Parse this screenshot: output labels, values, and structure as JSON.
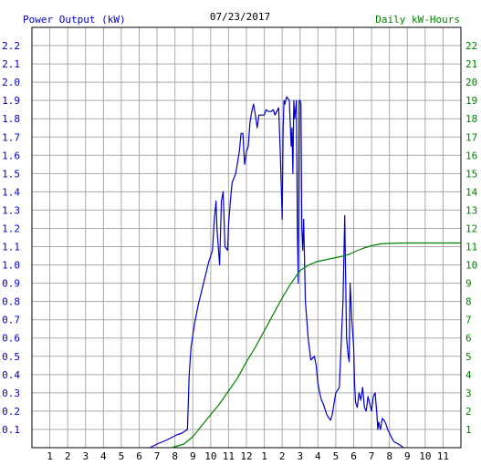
{
  "chart_data": {
    "type": "line",
    "title": "07/23/2017",
    "left_axis_label": "Power Output (kW)",
    "right_axis_label": "Daily kW-Hours",
    "x_ticks": [
      "1",
      "2",
      "3",
      "4",
      "5",
      "6",
      "7",
      "8",
      "9",
      "10",
      "11",
      "12",
      "1",
      "2",
      "3",
      "4",
      "5",
      "6",
      "7",
      "8",
      "9",
      "10",
      "11"
    ],
    "left_ticks": [
      "0.1",
      "0.2",
      "0.3",
      "0.4",
      "0.5",
      "0.6",
      "0.7",
      "0.8",
      "0.9",
      "1.0",
      "1.1",
      "1.2",
      "1.3",
      "1.4",
      "1.5",
      "1.6",
      "1.7",
      "1.8",
      "1.9",
      "2.0",
      "2.1",
      "2.2"
    ],
    "right_ticks": [
      "1",
      "2",
      "3",
      "4",
      "5",
      "6",
      "7",
      "8",
      "9",
      "10",
      "11",
      "12",
      "13",
      "14",
      "15",
      "16",
      "17",
      "18",
      "19",
      "20",
      "21",
      "22"
    ],
    "x_range": [
      0,
      24
    ],
    "left_ylim": [
      0,
      2.3
    ],
    "right_ylim": [
      0,
      23
    ],
    "grid": true,
    "colors": {
      "power": "#0000cc",
      "energy": "#008000",
      "left_axis": "#0000cc",
      "right_axis": "#008000",
      "grid": "#aaaaaa",
      "frame": "#000000"
    },
    "series": [
      {
        "name": "Power Output (kW)",
        "axis": "left",
        "x": [
          6.6,
          7.0,
          7.5,
          7.9,
          8.1,
          8.4,
          8.7,
          8.8,
          8.9,
          9.1,
          9.3,
          9.6,
          9.9,
          10.1,
          10.2,
          10.3,
          10.35,
          10.5,
          10.6,
          10.7,
          10.8,
          10.95,
          11.0,
          11.1,
          11.2,
          11.4,
          11.6,
          11.7,
          11.8,
          11.9,
          12.0,
          12.1,
          12.2,
          12.3,
          12.4,
          12.5,
          12.6,
          12.7,
          12.8,
          12.9,
          13.0,
          13.1,
          13.2,
          13.4,
          13.5,
          13.6,
          13.8,
          13.9,
          14.0,
          14.05,
          14.1,
          14.15,
          14.25,
          14.4,
          14.5,
          14.55,
          14.6,
          14.65,
          14.7,
          14.8,
          14.85,
          14.9,
          14.95,
          15.0,
          15.05,
          15.1,
          15.15,
          15.2,
          15.3,
          15.45,
          15.6,
          15.8,
          15.9,
          16.0,
          16.1,
          16.2,
          16.3,
          16.5,
          16.7,
          16.8,
          17.0,
          17.2,
          17.4,
          17.5,
          17.6,
          17.7,
          17.75,
          17.8,
          17.9,
          18.0,
          18.05,
          18.1,
          18.2,
          18.3,
          18.4,
          18.5,
          18.6,
          18.7,
          18.8,
          18.9,
          19.0,
          19.1,
          19.2,
          19.3,
          19.35,
          19.4,
          19.5,
          19.6,
          19.7,
          19.8,
          19.9,
          20.0,
          20.1,
          20.2,
          20.3,
          20.5,
          20.8
        ],
        "values": [
          0.0,
          0.02,
          0.04,
          0.06,
          0.07,
          0.08,
          0.1,
          0.4,
          0.55,
          0.68,
          0.78,
          0.9,
          1.02,
          1.08,
          1.25,
          1.35,
          1.2,
          1.0,
          1.35,
          1.4,
          1.1,
          1.08,
          1.22,
          1.35,
          1.45,
          1.5,
          1.62,
          1.72,
          1.72,
          1.55,
          1.62,
          1.65,
          1.78,
          1.84,
          1.88,
          1.82,
          1.75,
          1.82,
          1.82,
          1.82,
          1.82,
          1.85,
          1.84,
          1.84,
          1.85,
          1.82,
          1.86,
          1.6,
          1.25,
          1.72,
          1.9,
          1.88,
          1.92,
          1.9,
          1.65,
          1.75,
          1.5,
          1.9,
          1.8,
          1.9,
          1.2,
          0.9,
          1.9,
          1.9,
          1.88,
          1.2,
          1.08,
          1.25,
          0.8,
          0.6,
          0.48,
          0.5,
          0.45,
          0.35,
          0.3,
          0.26,
          0.24,
          0.18,
          0.15,
          0.18,
          0.3,
          0.33,
          0.8,
          1.27,
          0.6,
          0.5,
          0.47,
          0.9,
          0.7,
          0.55,
          0.35,
          0.25,
          0.22,
          0.3,
          0.26,
          0.33,
          0.22,
          0.2,
          0.28,
          0.24,
          0.2,
          0.28,
          0.3,
          0.18,
          0.1,
          0.14,
          0.1,
          0.16,
          0.15,
          0.13,
          0.1,
          0.08,
          0.06,
          0.04,
          0.03,
          0.02,
          0.0
        ]
      },
      {
        "name": "Daily kW-Hours",
        "axis": "right",
        "x": [
          7.8,
          8.5,
          9.0,
          9.5,
          10.0,
          10.5,
          11.0,
          11.5,
          12.0,
          12.5,
          13.0,
          13.5,
          14.0,
          14.5,
          15.0,
          15.5,
          16.0,
          16.5,
          17.0,
          17.5,
          17.8,
          18.0,
          18.5,
          19.0,
          19.5,
          20.0,
          21.0,
          22.0,
          23.0,
          24.0
        ],
        "values": [
          0.0,
          0.2,
          0.6,
          1.2,
          1.8,
          2.4,
          3.1,
          3.8,
          4.7,
          5.5,
          6.4,
          7.3,
          8.2,
          9.0,
          9.7,
          10.0,
          10.2,
          10.3,
          10.4,
          10.5,
          10.6,
          10.7,
          10.9,
          11.05,
          11.15,
          11.18,
          11.2,
          11.2,
          11.2,
          11.2
        ]
      }
    ]
  }
}
